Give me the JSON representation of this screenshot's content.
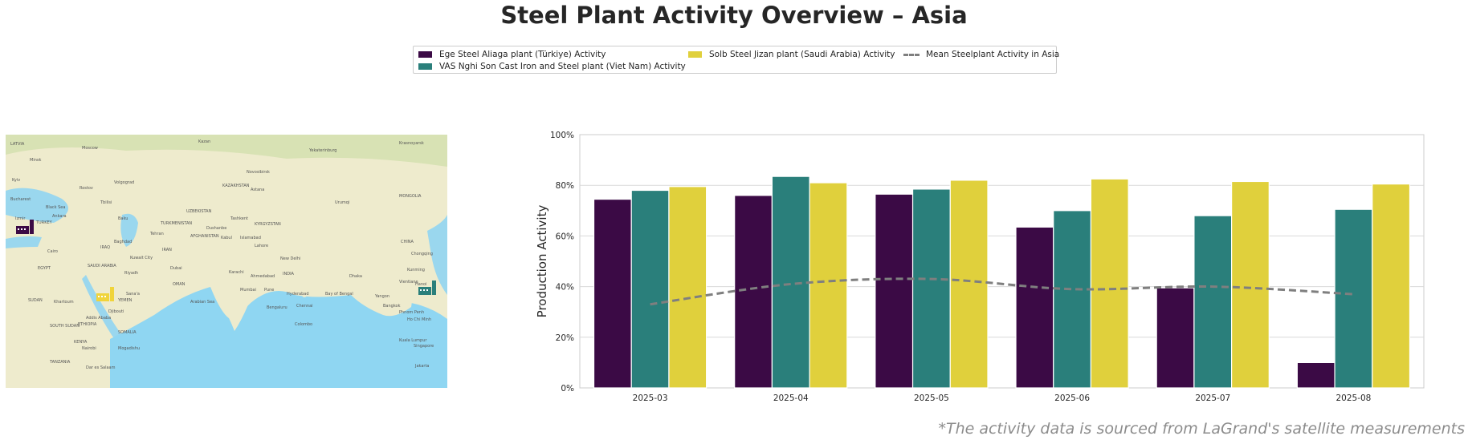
{
  "title": "Steel Plant Activity Overview – Asia",
  "footnote": "*The activity data is sourced from LaGrand's satellite measurements",
  "legend": {
    "items": [
      {
        "label": "Ege Steel Aliaga plant (Türkiye) Activity",
        "color": "#3b0a45",
        "kind": "bar"
      },
      {
        "label": "VAS Nghi Son Cast Iron and Steel plant (Viet Nam) Activity",
        "color": "#2a7f7b",
        "kind": "bar"
      },
      {
        "label": "Solb Steel Jizan plant (Saudi Arabia) Activity",
        "color": "#e0d03c",
        "kind": "bar"
      },
      {
        "label": "Mean Steelplant Activity in Asia",
        "color": "#7f7f7f",
        "kind": "dashed-line"
      }
    ]
  },
  "map": {
    "labels": [
      "LATVIA",
      "Minsk",
      "Moscow",
      "Kazan",
      "Yekaterinburg",
      "Novosibirsk",
      "Krasnoyarsk",
      "Kyiv",
      "Rostov",
      "Volgograd",
      "Astana",
      "KAZAKHSTAN",
      "MONGOLIA",
      "Bucharest",
      "Black Sea",
      "Tbilisi",
      "Baku",
      "UZBEKISTAN",
      "Tashkent",
      "Urumqi",
      "TURKEY",
      "Ankara",
      "Izmir",
      "TURKMENISTAN",
      "KYRGYZSTAN",
      "Dushanbe",
      "Kabul",
      "AFGHANISTAN",
      "Islamabad",
      "CHINA",
      "Cairo",
      "Baghdad",
      "IRAQ",
      "Tehran",
      "IRAN",
      "Lahore",
      "New Delhi",
      "EGYPT",
      "Riyadh",
      "SAUDI ARABIA",
      "Kuwait City",
      "Dubai",
      "Karachi",
      "Ahmedabad",
      "INDIA",
      "Dhaka",
      "Kunming",
      "Hanoi",
      "SUDAN",
      "Khartoum",
      "YEMEN",
      "Sana'a",
      "OMAN",
      "Mumbai",
      "Pune",
      "Hyderabad",
      "Bay of Bengal",
      "Yangon",
      "Vientiane",
      "Djibouti",
      "Addis Ababa",
      "ETHIOPIA",
      "Arabian Sea",
      "Bengaluru",
      "Chennai",
      "Colombo",
      "Bangkok",
      "Phnom Penh",
      "Ho Chi Minh",
      "SOUTH SUDAN",
      "SOMALIA",
      "KENYA",
      "Nairobi",
      "Mogadishu",
      "TANZANIA",
      "Dar es Salaam",
      "Kuala Lumpur",
      "Singapore",
      "Jakarta",
      "Chongqing"
    ],
    "markers": [
      {
        "plant": "Ege Steel Aliaga plant (Türkiye)",
        "color": "#3b0a45",
        "icon": "factory-icon"
      },
      {
        "plant": "Solb Steel Jizan plant (Saudi Arabia)",
        "color": "#f0d43a",
        "icon": "factory-icon"
      },
      {
        "plant": "VAS Nghi Son Cast Iron and Steel plant (Viet Nam)",
        "color": "#2a7f7b",
        "icon": "factory-icon"
      }
    ]
  },
  "chart_data": {
    "type": "bar",
    "ylabel": "Production Activity",
    "xlabel": "",
    "ylim": [
      0,
      100
    ],
    "y_ticks": [
      "0%",
      "20%",
      "40%",
      "60%",
      "80%",
      "100%"
    ],
    "grid": "horizontal",
    "categories": [
      "2025-03",
      "2025-04",
      "2025-05",
      "2025-06",
      "2025-07",
      "2025-08"
    ],
    "series": [
      {
        "name": "Ege Steel Aliaga plant (Türkiye) Activity",
        "color": "#3b0a45",
        "values": [
          74.5,
          76,
          76.5,
          63.5,
          39.5,
          10
        ]
      },
      {
        "name": "VAS Nghi Son Cast Iron and Steel plant (Viet Nam) Activity",
        "color": "#2a7f7b",
        "values": [
          78,
          83.5,
          78.5,
          70,
          68,
          70.5
        ]
      },
      {
        "name": "Solb Steel Jizan plant (Saudi Arabia) Activity",
        "color": "#e0d03c",
        "values": [
          79.5,
          81,
          82,
          82.5,
          81.5,
          80.5
        ]
      }
    ],
    "mean_line": {
      "name": "Mean Steelplant Activity in Asia",
      "color": "#7f7f7f",
      "style": "dashed",
      "values": [
        33,
        41,
        43,
        39,
        40,
        37
      ]
    }
  }
}
